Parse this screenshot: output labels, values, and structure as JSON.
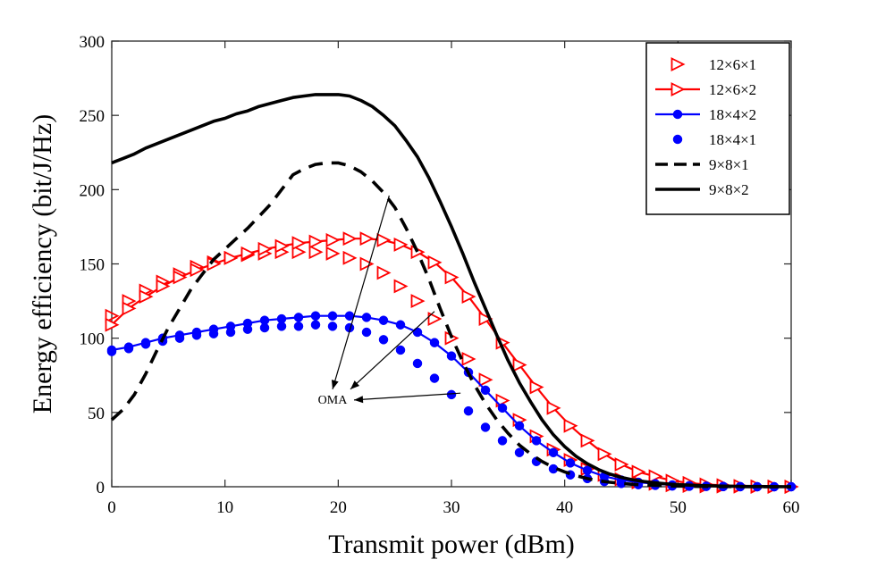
{
  "chart_data": {
    "type": "line",
    "title": "",
    "xlabel": "Transmit power (dBm)",
    "ylabel": "Energy efficiency (bit/J/Hz)",
    "xlim": [
      0,
      60
    ],
    "ylim": [
      0,
      300
    ],
    "xticks": [
      0,
      10,
      20,
      30,
      40,
      50,
      60
    ],
    "yticks": [
      0,
      50,
      100,
      150,
      200,
      250,
      300
    ],
    "grid": false,
    "legend_position": "top-right",
    "series": [
      {
        "name": "12×6×1",
        "style": "markers-only",
        "marker": "triangle-right-open",
        "color": "#ff0000",
        "x": [
          0,
          1.5,
          3,
          4.5,
          6,
          7.5,
          9,
          10.5,
          12,
          13.5,
          15,
          16.5,
          18,
          19.5,
          21,
          22.5,
          24,
          25.5,
          27,
          28.5,
          30,
          31.5,
          33,
          34.5,
          36,
          37.5,
          39,
          40.5,
          42,
          43.5,
          45,
          46.5,
          48,
          49.5,
          51,
          52.5,
          54,
          55.5,
          57,
          58.5,
          60
        ],
        "y": [
          115,
          125,
          132,
          138,
          143,
          148,
          151,
          154,
          156,
          157,
          158,
          158,
          158,
          157,
          154,
          150,
          144,
          135,
          125,
          113,
          100,
          86,
          72,
          58,
          45,
          34,
          25,
          18,
          12,
          8,
          5,
          3,
          2,
          1,
          0.6,
          0.3,
          0.2,
          0.1,
          0,
          0,
          0
        ]
      },
      {
        "name": "12×6×2",
        "style": "line-with-markers",
        "marker": "triangle-right-filled",
        "color": "#ff0000",
        "x": [
          0,
          1.5,
          3,
          4.5,
          6,
          7.5,
          9,
          10.5,
          12,
          13.5,
          15,
          16.5,
          18,
          19.5,
          21,
          22.5,
          24,
          25.5,
          27,
          28.5,
          30,
          31.5,
          33,
          34.5,
          36,
          37.5,
          39,
          40.5,
          42,
          43.5,
          45,
          46.5,
          48,
          49.5,
          51,
          52.5,
          54,
          55.5,
          57,
          58.5,
          60
        ],
        "y": [
          109,
          120,
          128,
          135,
          141,
          146,
          150,
          154,
          157,
          160,
          162,
          164,
          165,
          166,
          167,
          167,
          166,
          163,
          158,
          151,
          141,
          128,
          113,
          97,
          82,
          67,
          53,
          41,
          31,
          22,
          15,
          10,
          7,
          4,
          2.5,
          1.5,
          1,
          0.5,
          0.2,
          0.1,
          0
        ]
      },
      {
        "name": "18×4×2",
        "style": "line-with-markers",
        "marker": "circle-filled",
        "color": "#0000ff",
        "x": [
          0,
          1.5,
          3,
          4.5,
          6,
          7.5,
          9,
          10.5,
          12,
          13.5,
          15,
          16.5,
          18,
          19.5,
          21,
          22.5,
          24,
          25.5,
          27,
          28.5,
          30,
          31.5,
          33,
          34.5,
          36,
          37.5,
          39,
          40.5,
          42,
          43.5,
          45,
          46.5,
          48,
          49.5,
          51,
          52.5,
          54,
          55.5,
          57,
          58.5,
          60
        ],
        "y": [
          92,
          94,
          97,
          100,
          102,
          104,
          106,
          108,
          110,
          112,
          113,
          114,
          115,
          115,
          115,
          114,
          112,
          109,
          104,
          97,
          88,
          77,
          65,
          53,
          41,
          31,
          23,
          16,
          11,
          7,
          4.5,
          3,
          2,
          1.2,
          0.7,
          0.4,
          0.2,
          0.1,
          0,
          0,
          0
        ]
      },
      {
        "name": "18×4×1",
        "style": "markers-only",
        "marker": "circle-filled",
        "color": "#0000ff",
        "x": [
          0,
          1.5,
          3,
          4.5,
          6,
          7.5,
          9,
          10.5,
          12,
          13.5,
          15,
          16.5,
          18,
          19.5,
          21,
          22.5,
          24,
          25.5,
          27,
          28.5,
          30,
          31.5,
          33,
          34.5,
          36,
          37.5,
          39,
          40.5,
          42,
          43.5,
          45,
          46.5,
          48,
          49.5,
          51,
          52.5,
          54,
          55.5,
          57,
          58.5,
          60
        ],
        "y": [
          91,
          93,
          96,
          98,
          100,
          102,
          103,
          104,
          106,
          107,
          108,
          108,
          109,
          108,
          107,
          104,
          99,
          92,
          83,
          73,
          62,
          51,
          40,
          31,
          23,
          17,
          12,
          8,
          5.5,
          3.5,
          2.2,
          1.4,
          0.9,
          0.5,
          0.3,
          0.2,
          0.1,
          0,
          0,
          0,
          0
        ]
      },
      {
        "name": "9×8×1",
        "style": "dashed",
        "color": "#000000",
        "x": [
          0,
          1,
          2,
          3,
          4,
          5,
          6,
          7,
          8,
          9,
          10,
          11,
          12,
          13,
          14,
          15,
          16,
          17,
          18,
          19,
          20,
          21,
          22,
          23,
          24,
          25,
          26,
          27,
          28,
          29,
          30,
          31,
          32,
          33,
          34,
          35,
          36,
          37,
          38,
          39,
          40,
          41,
          42,
          43,
          44,
          45,
          46,
          47,
          48,
          49,
          50,
          52,
          54,
          56,
          58,
          60
        ],
        "y": [
          45,
          52,
          62,
          76,
          92,
          107,
          120,
          133,
          143,
          153,
          160,
          167,
          174,
          182,
          190,
          200,
          210,
          214,
          217,
          218,
          218,
          216,
          212,
          206,
          198,
          188,
          174,
          158,
          140,
          120,
          101,
          84,
          69,
          56,
          45,
          36,
          28,
          22,
          17,
          13,
          10,
          7.5,
          5.5,
          4,
          3,
          2.2,
          1.6,
          1.2,
          0.9,
          0.6,
          0.4,
          0.2,
          0.1,
          0,
          0,
          0
        ]
      },
      {
        "name": "9×8×2",
        "style": "solid",
        "color": "#000000",
        "x": [
          0,
          1,
          2,
          3,
          4,
          5,
          6,
          7,
          8,
          9,
          10,
          11,
          12,
          13,
          14,
          15,
          16,
          17,
          18,
          19,
          20,
          21,
          22,
          23,
          24,
          25,
          26,
          27,
          28,
          29,
          30,
          31,
          32,
          33,
          34,
          35,
          36,
          37,
          38,
          39,
          40,
          41,
          42,
          43,
          44,
          45,
          46,
          47,
          48,
          49,
          50,
          52,
          54,
          56,
          58,
          60
        ],
        "y": [
          218,
          221,
          224,
          228,
          231,
          234,
          237,
          240,
          243,
          246,
          248,
          251,
          253,
          256,
          258,
          260,
          262,
          263,
          264,
          264,
          264,
          263,
          260,
          256,
          250,
          243,
          233,
          222,
          208,
          192,
          175,
          157,
          138,
          120,
          102,
          85,
          70,
          57,
          45,
          35,
          27,
          20.5,
          15.5,
          11.5,
          8.5,
          6.3,
          4.7,
          3.5,
          2.6,
          1.9,
          1.4,
          0.8,
          0.4,
          0.2,
          0.1,
          0
        ]
      }
    ],
    "annotations": [
      {
        "text": "OMA",
        "x": 19.5,
        "y": 56,
        "arrows_to": [
          [
            24.5,
            196
          ],
          [
            28.5,
            118
          ],
          [
            30.8,
            63
          ]
        ]
      }
    ]
  }
}
